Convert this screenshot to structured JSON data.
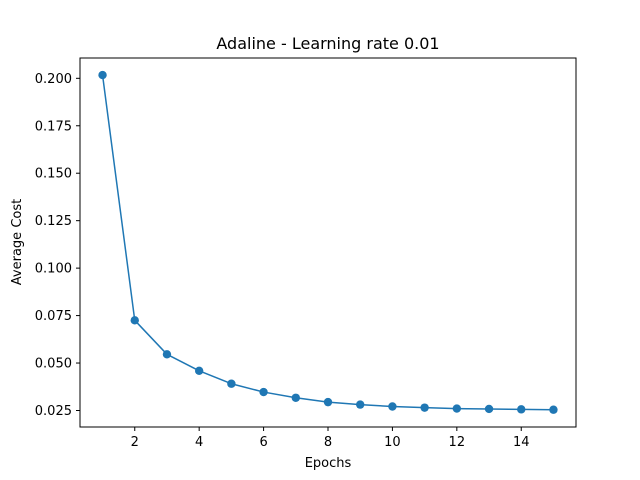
{
  "chart_data": {
    "type": "line",
    "title": "Adaline - Learning rate 0.01",
    "xlabel": "Epochs",
    "ylabel": "Average Cost",
    "xlim": [
      0.3,
      15.7
    ],
    "ylim": [
      0.0163,
      0.2107
    ],
    "xticks": [
      2,
      4,
      6,
      8,
      10,
      12,
      14
    ],
    "yticks": [
      0.025,
      0.05,
      0.075,
      0.1,
      0.125,
      0.15,
      0.175,
      0.2
    ],
    "ytick_labels": [
      "0.025",
      "0.050",
      "0.075",
      "0.100",
      "0.125",
      "0.150",
      "0.175",
      "0.200"
    ],
    "grid": false,
    "series": [
      {
        "color": "#1f77b4",
        "marker": "circle",
        "x": [
          1,
          2,
          3,
          4,
          5,
          6,
          7,
          8,
          9,
          10,
          11,
          12,
          13,
          14,
          15
        ],
        "y": [
          0.2017,
          0.0725,
          0.0546,
          0.0459,
          0.0391,
          0.0347,
          0.0317,
          0.0294,
          0.0281,
          0.0271,
          0.0265,
          0.026,
          0.0258,
          0.0256,
          0.0254
        ]
      }
    ]
  }
}
